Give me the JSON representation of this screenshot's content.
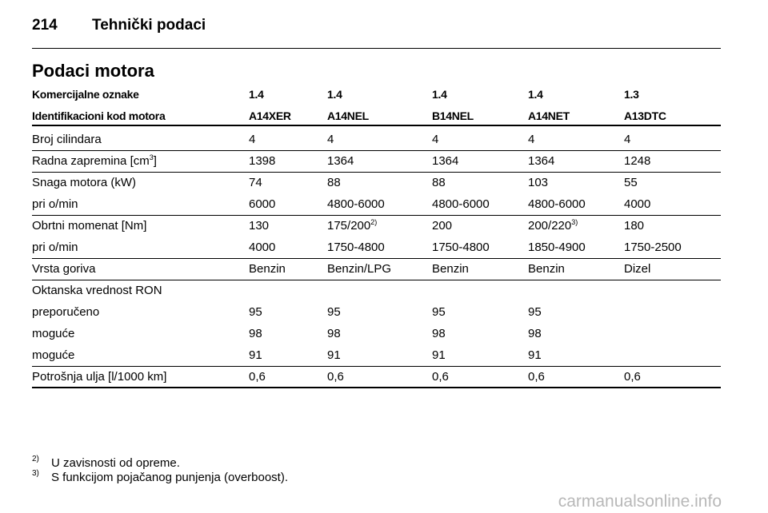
{
  "header": {
    "page_number": "214",
    "title": "Tehnički podaci"
  },
  "section_title": "Podaci motora",
  "table": {
    "head": [
      [
        "Komercijalne oznake",
        "1.4",
        "1.4",
        "1.4",
        "1.4",
        "1.3"
      ],
      [
        "Identifikacioni kod motora",
        "A14XER",
        "A14NEL",
        "B14NEL",
        "A14NET",
        "A13DTC"
      ]
    ],
    "body": [
      [
        [
          "Broj cilindara",
          "4",
          "4",
          "4",
          "4",
          "4"
        ]
      ],
      [
        [
          {
            "text": "Radna zapremina [cm",
            "sup": "3",
            "after": "]"
          },
          "1398",
          "1364",
          "1364",
          "1364",
          "1248"
        ]
      ],
      [
        [
          "Snaga motora (kW)",
          "74",
          "88",
          "88",
          "103",
          "55"
        ],
        [
          "pri o/min",
          "6000",
          "4800-6000",
          "4800-6000",
          "4800-6000",
          "4000"
        ]
      ],
      [
        [
          "Obrtni momenat [Nm]",
          "130",
          {
            "text": "175/200",
            "sup": "2)"
          },
          "200",
          {
            "text": "200/220",
            "sup": "3)"
          },
          "180"
        ],
        [
          "pri o/min",
          "4000",
          "1750-4800",
          "1750-4800",
          "1850-4900",
          "1750-2500"
        ]
      ],
      [
        [
          "Vrsta goriva",
          "Benzin",
          "Benzin/LPG",
          "Benzin",
          "Benzin",
          "Dizel"
        ]
      ],
      [
        [
          "Oktanska vrednost RON"
        ],
        [
          "preporučeno",
          "95",
          "95",
          "95",
          "95"
        ],
        [
          "moguće",
          "98",
          "98",
          "98",
          "98"
        ],
        [
          "moguće",
          "91",
          "91",
          "91",
          "91"
        ]
      ],
      [
        [
          "Potrošnja ulja [l/1000 km]",
          "0,6",
          "0,6",
          "0,6",
          "0,6",
          "0,6"
        ]
      ]
    ]
  },
  "footnotes": [
    {
      "marker": "2)",
      "text": "U zavisnosti od opreme."
    },
    {
      "marker": "3)",
      "text": "S funkcijom pojačanog punjenja (overboost)."
    }
  ],
  "watermark": "carmanualsonline.info"
}
